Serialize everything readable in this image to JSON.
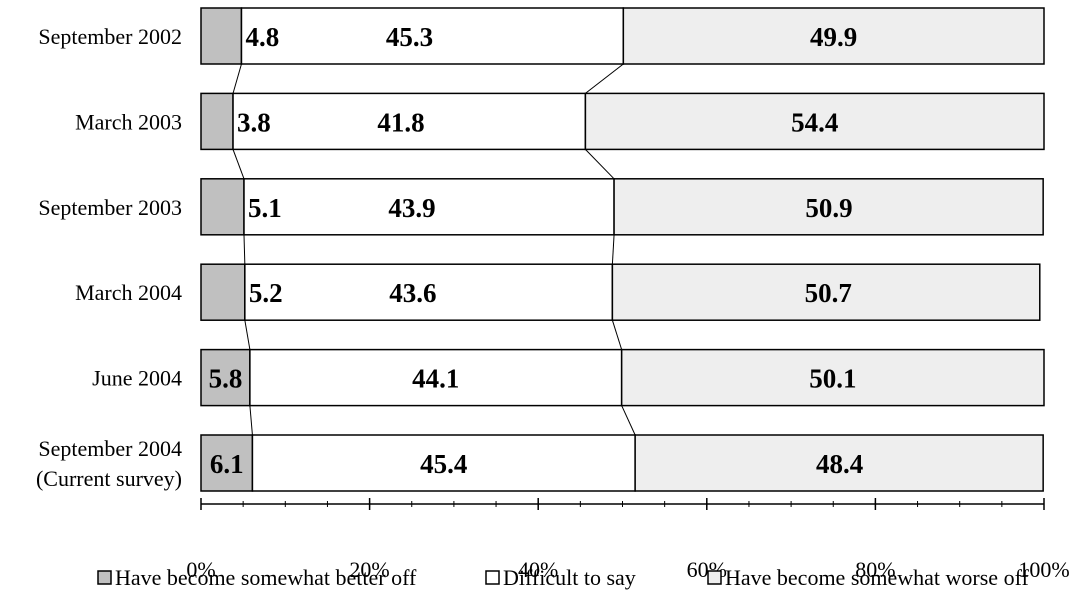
{
  "chart_data": {
    "type": "bar",
    "orientation": "horizontal",
    "stacked": true,
    "percent_stacked": true,
    "categories": [
      [
        "September 2002"
      ],
      [
        "March 2003"
      ],
      [
        "September 2003"
      ],
      [
        "March 2004"
      ],
      [
        "June 2004"
      ],
      [
        "September 2004",
        "(Current survey)"
      ]
    ],
    "series": [
      {
        "name": "Have become somewhat better off",
        "values": [
          4.8,
          3.8,
          5.1,
          5.2,
          5.8,
          6.1
        ],
        "color": "#c0c0c0"
      },
      {
        "name": "Difficult to say",
        "values": [
          45.3,
          41.8,
          43.9,
          43.6,
          44.1,
          45.4
        ],
        "color": "#ffffff"
      },
      {
        "name": "Have become somewhat worse off",
        "values": [
          49.9,
          54.4,
          50.9,
          50.7,
          50.1,
          48.4
        ],
        "color": "#eeeeee"
      }
    ],
    "x_ticks": [
      "0%",
      "20%",
      "40%",
      "60%",
      "80%",
      "100%"
    ],
    "xlim": [
      0,
      100
    ],
    "grid": false,
    "legend_position": "bottom",
    "connector_lines": true
  }
}
